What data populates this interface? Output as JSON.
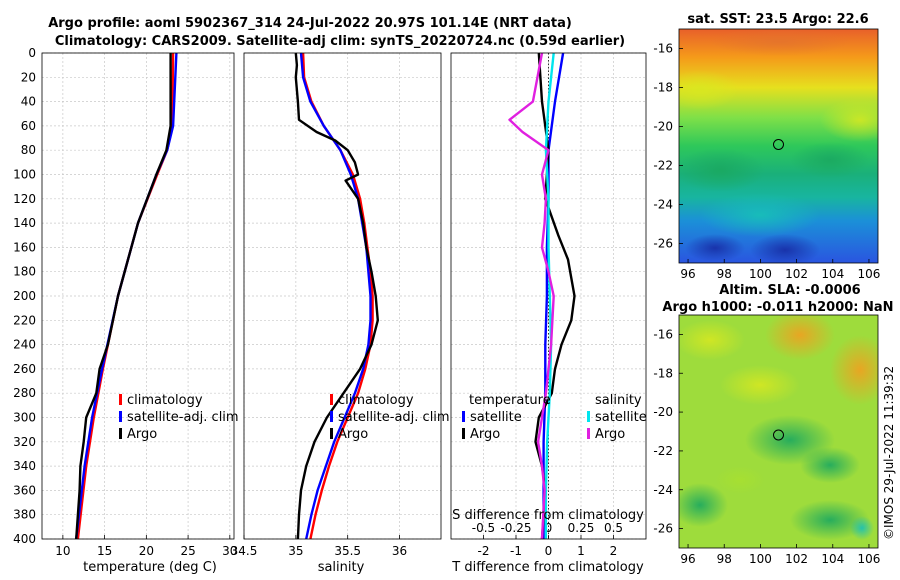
{
  "colors": {
    "climatology": "#ff0000",
    "satellite": "#0000ff",
    "argo": "#000000",
    "sat_salinity": "#00e5ee",
    "argo_salinity": "#e020e0"
  },
  "chart_data": [
    {
      "type": "line",
      "name": "temperature-panel",
      "title": "Argo profile: aoml 5902367_314 24-Jul-2022 20.97S 101.14E (NRT data)",
      "subtitle": "Climatology: CARS2009. Satellite-adj clim: synTS_20220724.nc (0.59d earlier)",
      "xlabel": "temperature (deg C)",
      "xlim": [
        7.5,
        30.5
      ],
      "xticks": [
        10,
        15,
        20,
        25,
        30
      ],
      "ylim": [
        0,
        400
      ],
      "yticks": [
        0,
        20,
        40,
        60,
        80,
        100,
        120,
        140,
        160,
        180,
        200,
        220,
        240,
        260,
        280,
        300,
        320,
        340,
        360,
        380,
        400
      ],
      "legend": [
        "climatology",
        "satellite-adj. clim",
        "Argo"
      ],
      "series": [
        {
          "name": "climatology",
          "color": "#ff0000",
          "depth": [
            0,
            60,
            80,
            100,
            140,
            200,
            260,
            300,
            340,
            400
          ],
          "values": [
            23.2,
            23.1,
            22.5,
            21.3,
            19.0,
            16.6,
            14.8,
            13.7,
            12.8,
            11.8
          ]
        },
        {
          "name": "satellite-adj. clim",
          "color": "#0000ff",
          "depth": [
            0,
            60,
            80,
            100,
            140,
            200,
            260,
            300,
            340,
            400
          ],
          "values": [
            23.6,
            23.2,
            22.5,
            21.2,
            19.0,
            16.6,
            14.7,
            13.5,
            12.6,
            11.6
          ]
        },
        {
          "name": "Argo",
          "color": "#000000",
          "depth": [
            0,
            60,
            80,
            100,
            140,
            200,
            240,
            260,
            280,
            300,
            320,
            340,
            360,
            400
          ],
          "values": [
            22.9,
            22.9,
            22.4,
            21.2,
            19.0,
            16.6,
            15.4,
            14.4,
            14.0,
            12.8,
            12.5,
            12.1,
            12.0,
            11.6
          ]
        }
      ]
    },
    {
      "type": "line",
      "name": "salinity-panel",
      "xlabel": "salinity",
      "xlim": [
        34.5,
        36.4
      ],
      "xticks": [
        34.5,
        35,
        35.5,
        36
      ],
      "xticklabels": [
        "34.5",
        "35",
        "35.5",
        "36"
      ],
      "ylim": [
        0,
        400
      ],
      "legend": [
        "climatology",
        "satellite-adj. clim",
        "Argo"
      ],
      "series": [
        {
          "name": "climatology",
          "color": "#ff0000",
          "depth": [
            0,
            20,
            40,
            60,
            80,
            100,
            120,
            140,
            160,
            180,
            200,
            220,
            240,
            260,
            280,
            300,
            320,
            340,
            360,
            380,
            400
          ],
          "values": [
            35.07,
            35.08,
            35.15,
            35.27,
            35.43,
            35.55,
            35.62,
            35.66,
            35.69,
            35.72,
            35.74,
            35.74,
            35.72,
            35.67,
            35.6,
            35.5,
            35.4,
            35.32,
            35.25,
            35.19,
            35.14
          ]
        },
        {
          "name": "satellite-adj. clim",
          "color": "#0000ff",
          "depth": [
            0,
            20,
            40,
            60,
            80,
            100,
            120,
            140,
            160,
            180,
            200,
            220,
            240,
            260,
            280,
            300,
            320,
            340,
            360,
            380,
            400
          ],
          "values": [
            35.05,
            35.07,
            35.14,
            35.27,
            35.43,
            35.53,
            35.6,
            35.64,
            35.68,
            35.7,
            35.72,
            35.72,
            35.7,
            35.65,
            35.57,
            35.47,
            35.37,
            35.29,
            35.21,
            35.15,
            35.1
          ]
        },
        {
          "name": "Argo",
          "color": "#000000",
          "depth": [
            0,
            10,
            20,
            40,
            55,
            65,
            72,
            80,
            90,
            100,
            105,
            110,
            120,
            140,
            160,
            180,
            200,
            220,
            240,
            260,
            280,
            300,
            320,
            340,
            360,
            380,
            400
          ],
          "values": [
            35.0,
            35.01,
            35.0,
            35.02,
            35.03,
            35.2,
            35.38,
            35.5,
            35.57,
            35.6,
            35.48,
            35.52,
            35.6,
            35.65,
            35.68,
            35.73,
            35.77,
            35.79,
            35.73,
            35.62,
            35.46,
            35.3,
            35.18,
            35.1,
            35.05,
            35.03,
            35.02
          ]
        }
      ]
    },
    {
      "type": "line",
      "name": "difference-panel",
      "xlabel": "T difference from climatology",
      "xlim": [
        -3,
        3
      ],
      "xticks": [
        -2,
        -1,
        0,
        1,
        2
      ],
      "top_axis_label": "S difference from climatology",
      "top_ticks": [
        -0.5,
        -0.25,
        0,
        0.25,
        0.5
      ],
      "top_ticklabels": [
        "-0.5",
        "-0.25",
        "0",
        "0.25",
        "0.5"
      ],
      "ylim": [
        0,
        400
      ],
      "legend_left_title": "temperature",
      "legend_right_title": "salinity",
      "legend_left": [
        "satellite",
        "Argo"
      ],
      "legend_right": [
        "satellite",
        "Argo"
      ],
      "series": [
        {
          "name": "T satellite",
          "color": "#0000ff",
          "depth": [
            0,
            40,
            80,
            120,
            160,
            200,
            240,
            280,
            320,
            360,
            400
          ],
          "values": [
            0.45,
            0.2,
            0.0,
            0.0,
            -0.05,
            -0.05,
            -0.1,
            -0.1,
            -0.15,
            -0.15,
            -0.15
          ]
        },
        {
          "name": "T Argo",
          "color": "#000000",
          "depth": [
            0,
            40,
            80,
            120,
            150,
            170,
            200,
            220,
            240,
            260,
            280,
            300,
            320,
            340,
            360,
            400
          ],
          "values": [
            -0.3,
            -0.2,
            0.0,
            -0.1,
            0.3,
            0.6,
            0.8,
            0.7,
            0.4,
            0.2,
            0.1,
            -0.3,
            -0.4,
            -0.2,
            -0.1,
            -0.2
          ]
        },
        {
          "name": "S satellite",
          "color": "#00e5ee",
          "depth": [
            0,
            40,
            80,
            120,
            160,
            200,
            240,
            280,
            320,
            360,
            400
          ],
          "values": [
            0.04,
            0.0,
            -0.02,
            0.0,
            0.0,
            0.01,
            0.02,
            0.01,
            -0.01,
            -0.02,
            -0.02
          ]
        },
        {
          "name": "S Argo",
          "color": "#e020e0",
          "depth": [
            0,
            40,
            55,
            65,
            80,
            100,
            120,
            140,
            160,
            180,
            200,
            240,
            280,
            300,
            320,
            340,
            360,
            400
          ],
          "values": [
            -0.05,
            -0.12,
            -0.3,
            -0.2,
            0.0,
            -0.05,
            -0.02,
            -0.03,
            -0.05,
            0.0,
            0.04,
            0.02,
            -0.02,
            -0.05,
            -0.08,
            -0.05,
            -0.03,
            -0.05
          ]
        }
      ]
    },
    {
      "type": "heatmap",
      "name": "sst-map",
      "title": "sat. SST: 23.5 Argo: 22.6",
      "xlim": [
        95.5,
        106.5
      ],
      "ylim": [
        -27,
        -15
      ],
      "xticks": [
        96,
        98,
        100,
        102,
        104,
        106
      ],
      "yticks": [
        -16,
        -18,
        -20,
        -22,
        -24,
        -26
      ],
      "marker": {
        "lon": 101.14,
        "lat": -20.97
      }
    },
    {
      "type": "heatmap",
      "name": "sla-map",
      "title": "Altim. SLA: -0.0006",
      "subtitle": "Argo h1000: -0.011 h2000: NaN",
      "xlim": [
        95.5,
        106.5
      ],
      "ylim": [
        -27,
        -15
      ],
      "xticks": [
        96,
        98,
        100,
        102,
        104,
        106
      ],
      "yticks": [
        -16,
        -18,
        -20,
        -22,
        -24,
        -26
      ],
      "marker": {
        "lon": 101.14,
        "lat": -20.97
      }
    }
  ],
  "watermark": "©IMOS 29-Jul-2022 11:39:32"
}
